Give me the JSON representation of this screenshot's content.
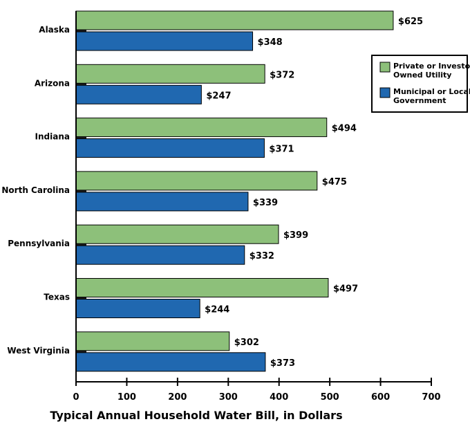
{
  "chart_data": {
    "type": "bar",
    "orientation": "horizontal",
    "categories": [
      "Alaska",
      "Arizona",
      "Indiana",
      "North Carolina",
      "Pennsylvania",
      "Texas",
      "West Virginia"
    ],
    "series": [
      {
        "name": "Private or Investor Owned Utility",
        "color": "#8dc07a",
        "values": [
          625,
          372,
          494,
          475,
          399,
          497,
          302
        ],
        "labels": [
          "$625",
          "$372",
          "$494",
          "$475",
          "$399",
          "$497",
          "$302"
        ]
      },
      {
        "name": "Municipal or Local Government",
        "color": "#2068b0",
        "values": [
          348,
          247,
          371,
          339,
          332,
          244,
          373
        ],
        "labels": [
          "$348",
          "$247",
          "$371",
          "$339",
          "$332",
          "$244",
          "$373"
        ]
      }
    ],
    "legend_lines": [
      [
        "Private or Investor",
        "Owned Utility"
      ],
      [
        "Municipal or Local",
        "Government"
      ]
    ],
    "xlabel": "Typical Annual Household Water Bill, in Dollars",
    "xlim": [
      0,
      700
    ],
    "xticks": [
      "0",
      "100",
      "200",
      "300",
      "400",
      "500",
      "600",
      "700"
    ],
    "legend_position": "top-right",
    "grid": false
  }
}
